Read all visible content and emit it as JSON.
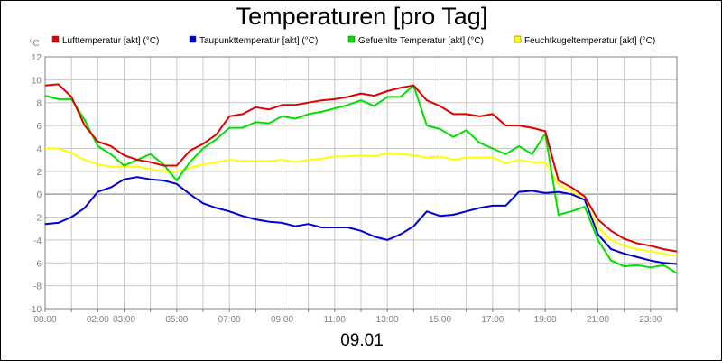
{
  "chart_data": {
    "type": "line",
    "title": "Temperaturen [pro Tag]",
    "date_label": "09.01",
    "unit": "°C",
    "ylim": [
      -10,
      12
    ],
    "xlim": [
      0,
      24
    ],
    "grid": true,
    "legend_position": "top",
    "y_ticks": [
      -10,
      -8,
      -6,
      -4,
      -2,
      0,
      2,
      4,
      6,
      8,
      10,
      12
    ],
    "x_ticks": [
      {
        "x": 0,
        "label": "00:00"
      },
      {
        "x": 2,
        "label": "02:00"
      },
      {
        "x": 3,
        "label": "03:00"
      },
      {
        "x": 5,
        "label": "05:00"
      },
      {
        "x": 7,
        "label": "07:00"
      },
      {
        "x": 9,
        "label": "09:00"
      },
      {
        "x": 11,
        "label": "11:00"
      },
      {
        "x": 13,
        "label": "13:00"
      },
      {
        "x": 15,
        "label": "15:00"
      },
      {
        "x": 17,
        "label": "17:00"
      },
      {
        "x": 19,
        "label": "19:00"
      },
      {
        "x": 21,
        "label": "21:00"
      },
      {
        "x": 23,
        "label": "23:00"
      }
    ],
    "x": [
      0,
      0.5,
      1,
      1.5,
      2,
      2.5,
      3,
      3.5,
      4,
      4.5,
      5,
      5.5,
      6,
      6.5,
      7,
      7.5,
      8,
      8.5,
      9,
      9.5,
      10,
      10.5,
      11,
      11.5,
      12,
      12.5,
      13,
      13.5,
      14,
      14.5,
      15,
      15.5,
      16,
      16.5,
      17,
      17.5,
      18,
      18.5,
      19,
      19.5,
      20,
      20.5,
      21,
      21.5,
      22,
      22.5,
      23,
      23.5,
      24
    ],
    "series": [
      {
        "name": "Lufttemperatur [akt] (°C)",
        "color": "#e00000",
        "values": [
          9.5,
          9.6,
          8.5,
          6.0,
          4.6,
          4.2,
          3.4,
          3.0,
          2.8,
          2.5,
          2.5,
          3.8,
          4.4,
          5.2,
          6.8,
          7.0,
          7.6,
          7.4,
          7.8,
          7.8,
          8.0,
          8.2,
          8.3,
          8.5,
          8.8,
          8.6,
          9.0,
          9.3,
          9.5,
          8.2,
          7.7,
          7.0,
          7.0,
          6.8,
          7.0,
          6.0,
          6.0,
          5.8,
          5.5,
          1.2,
          0.6,
          -0.2,
          -2.2,
          -3.2,
          -3.9,
          -4.3,
          -4.5,
          -4.8,
          -5.0
        ]
      },
      {
        "name": "Taupunkttemperatur [akt] (°C)",
        "color": "#0000d0",
        "values": [
          -2.6,
          -2.5,
          -2.0,
          -1.2,
          0.2,
          0.6,
          1.3,
          1.5,
          1.3,
          1.2,
          0.9,
          0.0,
          -0.8,
          -1.2,
          -1.5,
          -1.9,
          -2.2,
          -2.4,
          -2.5,
          -2.8,
          -2.6,
          -2.9,
          -2.9,
          -2.9,
          -3.2,
          -3.7,
          -4.0,
          -3.5,
          -2.8,
          -1.5,
          -1.9,
          -1.8,
          -1.5,
          -1.2,
          -1.0,
          -1.0,
          0.2,
          0.3,
          0.1,
          0.2,
          0.0,
          -0.5,
          -3.5,
          -4.8,
          -5.2,
          -5.5,
          -5.8,
          -6.0,
          -6.1
        ]
      },
      {
        "name": "Gefuehlte Temperatur [akt] (°C)",
        "color": "#00e000",
        "values": [
          8.6,
          8.3,
          8.3,
          6.5,
          4.2,
          3.5,
          2.5,
          3.0,
          3.5,
          2.6,
          1.2,
          2.8,
          4.0,
          4.8,
          5.8,
          5.8,
          6.3,
          6.2,
          6.8,
          6.6,
          7.0,
          7.2,
          7.5,
          7.8,
          8.2,
          7.7,
          8.5,
          8.5,
          9.5,
          6.0,
          5.7,
          5.0,
          5.6,
          4.5,
          4.0,
          3.5,
          4.2,
          3.5,
          5.3,
          -1.8,
          -1.5,
          -1.1,
          -4.0,
          -5.8,
          -6.3,
          -6.2,
          -6.4,
          -6.2,
          -6.9
        ]
      },
      {
        "name": "Feuchtkugeltemperatur [akt] (°C)",
        "color": "#ffff00",
        "values": [
          4.0,
          4.0,
          3.6,
          3.0,
          2.6,
          2.4,
          2.4,
          2.4,
          2.2,
          2.0,
          2.0,
          2.3,
          2.6,
          2.8,
          3.0,
          2.9,
          2.9,
          2.9,
          3.0,
          2.8,
          3.0,
          3.1,
          3.3,
          3.3,
          3.4,
          3.3,
          3.6,
          3.5,
          3.4,
          3.2,
          3.3,
          3.0,
          3.2,
          3.2,
          3.2,
          2.7,
          3.0,
          2.8,
          2.8,
          0.8,
          0.3,
          -0.5,
          -2.9,
          -4.0,
          -4.5,
          -4.8,
          -5.0,
          -5.2,
          -5.4
        ]
      }
    ]
  }
}
